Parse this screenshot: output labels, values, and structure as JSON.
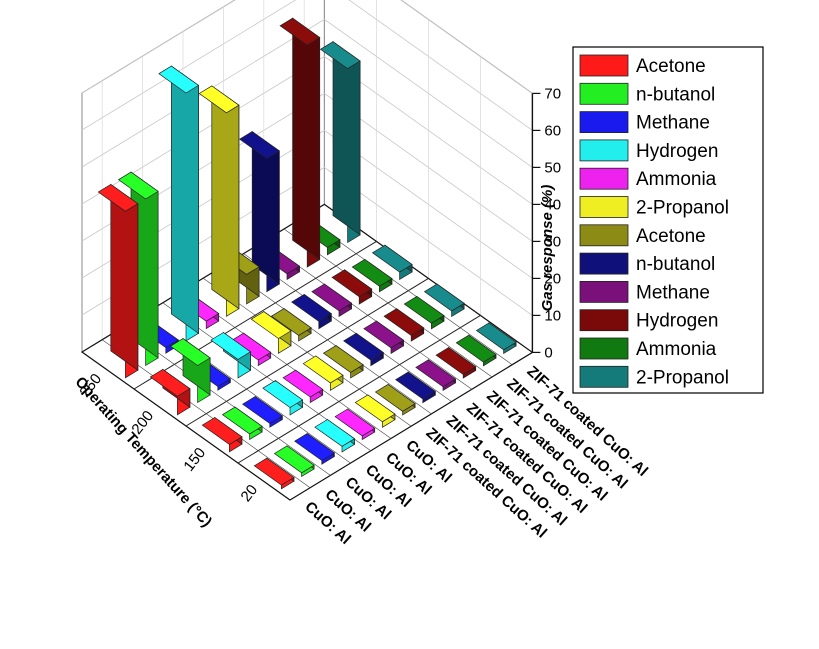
{
  "chart_data": {
    "type": "bar",
    "subtype": "3d-bar",
    "title": "",
    "zlabel": "Gas response (%)",
    "ylabel": "Operating Temperature (°C)",
    "zlim": [
      0,
      70
    ],
    "zticks": [
      0,
      10,
      20,
      30,
      40,
      50,
      60,
      70
    ],
    "temperatures": [
      "250",
      "200",
      "150",
      "20"
    ],
    "series": [
      {
        "name": "Acetone",
        "group": "CuO: Al",
        "color": "#ff1a1a",
        "values": [
          45,
          5,
          2,
          1
        ]
      },
      {
        "name": "n-butanol",
        "group": "CuO: Al",
        "color": "#22ee22",
        "values": [
          45,
          10,
          1.5,
          1
        ]
      },
      {
        "name": "Methane",
        "group": "CuO: Al",
        "color": "#1a1aee",
        "values": [
          1.5,
          1,
          1,
          1
        ]
      },
      {
        "name": "Hydrogen",
        "group": "CuO: Al",
        "color": "#22eeee",
        "values": [
          67,
          5,
          2,
          1.5
        ]
      },
      {
        "name": "Ammonia",
        "group": "CuO: Al",
        "color": "#ee22ee",
        "values": [
          2,
          1.5,
          1.5,
          1
        ]
      },
      {
        "name": "2-Propanol",
        "group": "CuO: Al",
        "color": "#eeee22",
        "values": [
          55,
          4,
          2,
          1.5
        ]
      },
      {
        "name": "Acetone",
        "group": "ZIF-71 coated CuO: Al",
        "color": "#8b8b15",
        "values": [
          8,
          1.5,
          1.5,
          1
        ]
      },
      {
        "name": "n-butanol",
        "group": "ZIF-71 coated CuO: Al",
        "color": "#10107a",
        "values": [
          36,
          2,
          1.5,
          1
        ]
      },
      {
        "name": "Methane",
        "group": "ZIF-71 coated CuO: Al",
        "color": "#7a107a",
        "values": [
          1.5,
          1.5,
          1.5,
          1
        ]
      },
      {
        "name": "Hydrogen",
        "group": "ZIF-71 coated CuO: Al",
        "color": "#7a0a0a",
        "values": [
          60,
          2,
          1.5,
          1
        ]
      },
      {
        "name": "Ammonia",
        "group": "ZIF-71 coated CuO: Al",
        "color": "#107a10",
        "values": [
          2,
          1.5,
          1.5,
          1
        ]
      },
      {
        "name": "2-Propanol",
        "group": "ZIF-71 coated CuO: Al",
        "color": "#157a7a",
        "values": [
          47,
          2,
          1.5,
          1
        ]
      }
    ],
    "category_labels": [
      "CuO: Al",
      "CuO: Al",
      "CuO: Al",
      "CuO: Al",
      "CuO: Al",
      "CuO: Al",
      "ZIF-71 coated CuO: Al",
      "ZIF-71 coated CuO: Al",
      "ZIF-71 coated CuO: Al",
      "ZIF-71 coated CuO: Al",
      "ZIF-71 coated CuO: Al",
      "ZIF-71 coated CuO: Al"
    ],
    "legend_position": "right",
    "grid": true
  }
}
